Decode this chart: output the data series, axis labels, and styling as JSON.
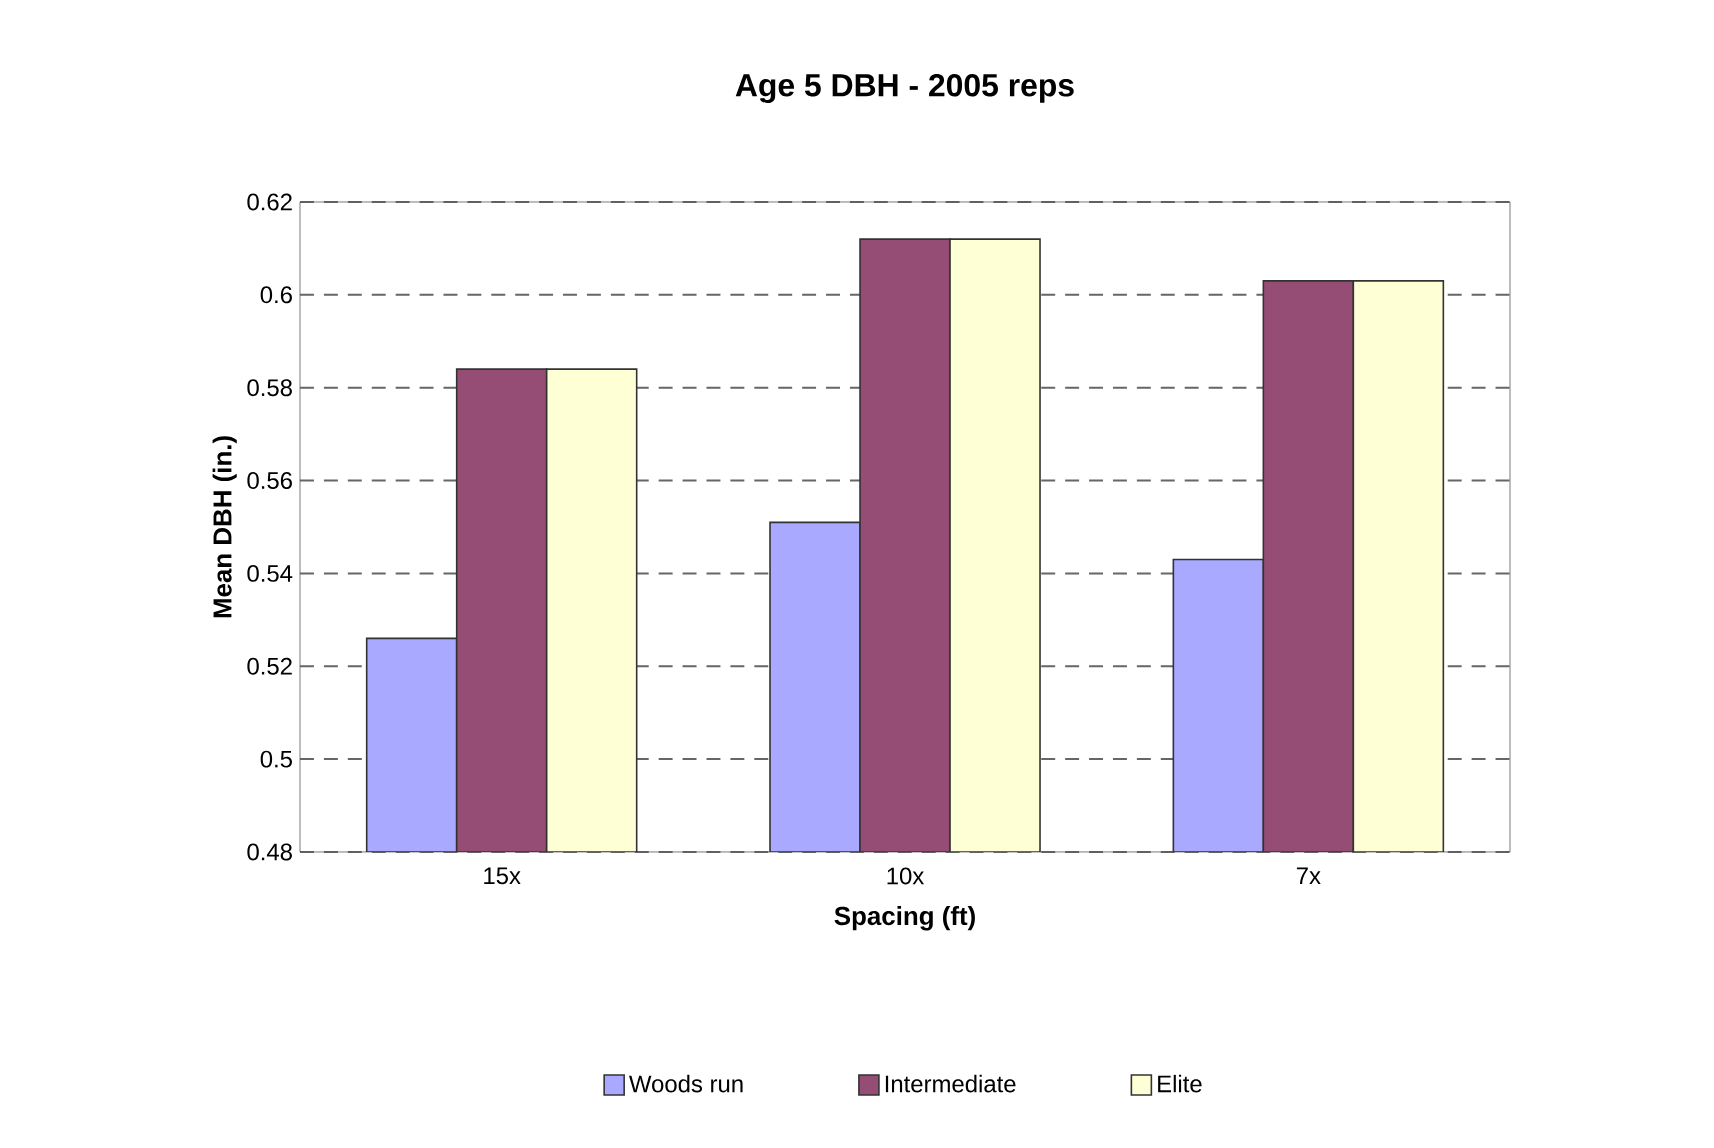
{
  "chart_data": {
    "type": "bar",
    "title": "Age 5 DBH - 2005 reps",
    "xlabel": "Spacing (ft)",
    "ylabel": "Mean DBH (in.)",
    "categories": [
      "15x",
      "10x",
      "7x"
    ],
    "series": [
      {
        "name": "Woods run",
        "color": "#a9a9ff",
        "values": [
          0.526,
          0.551,
          0.543
        ]
      },
      {
        "name": "Intermediate",
        "color": "#954d76",
        "values": [
          0.584,
          0.612,
          0.603
        ]
      },
      {
        "name": "Elite",
        "color": "#ffffd6",
        "values": [
          0.584,
          0.612,
          0.603
        ]
      }
    ],
    "ylim": [
      0.48,
      0.62
    ],
    "yticks": [
      0.48,
      0.5,
      0.52,
      0.54,
      0.56,
      0.58,
      0.6,
      0.62
    ],
    "grid": "y",
    "legend": "bottom"
  }
}
